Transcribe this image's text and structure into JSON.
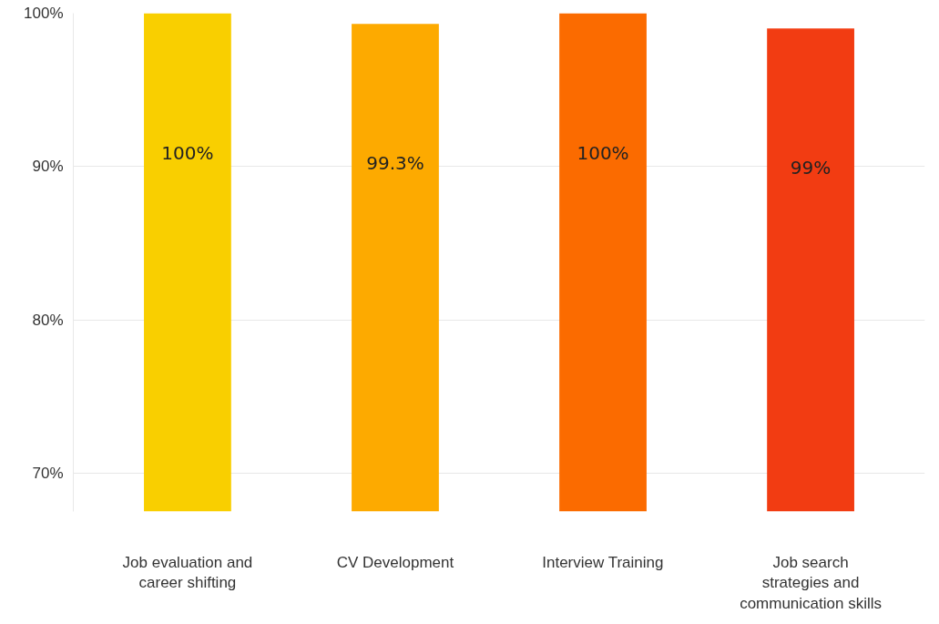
{
  "chart_data": {
    "type": "bar",
    "categories": [
      "Job evaluation and career shifting",
      "CV Development",
      "Interview Training",
      "Job search strategies and communication skills"
    ],
    "values": [
      100,
      99.3,
      100,
      99
    ],
    "colors": [
      "#f9cf00",
      "#fdaa00",
      "#fb6b00",
      "#f23c12"
    ],
    "value_labels": [
      "100%",
      "99.3%",
      "100%",
      "99%"
    ],
    "ylim": [
      67.5,
      100
    ],
    "yticks": [
      {
        "value": 70,
        "label": "70%"
      },
      {
        "value": 80,
        "label": "80%"
      },
      {
        "value": 90,
        "label": "90%"
      },
      {
        "value": 100,
        "label": "100%"
      }
    ],
    "grid": "y"
  }
}
